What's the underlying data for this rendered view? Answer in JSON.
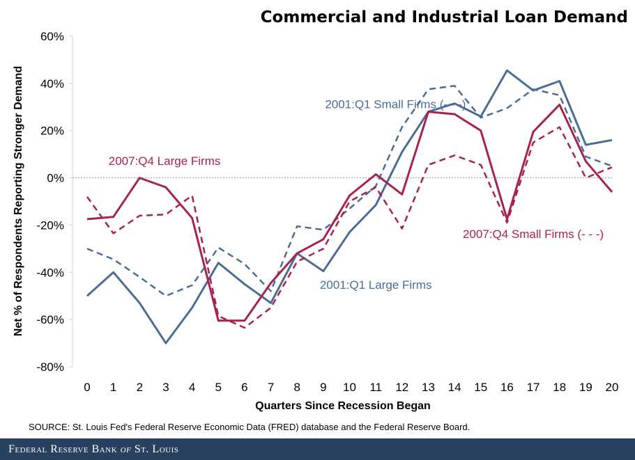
{
  "footer": {
    "org_part1": "Federal Reserve Bank",
    "org_of": "of",
    "org_part2": "St. Louis"
  },
  "colors": {
    "blue": "#4a6d97",
    "red": "#a8234b",
    "zero_line": "#999999",
    "footer_bg": "#27415f"
  },
  "chart_data": {
    "type": "line",
    "title": "Commercial and Industrial Loan Demand",
    "xlabel": "Quarters Since Recession Began",
    "ylabel": "Net % of Respondents Reporting Stronger Demand",
    "source": "SOURCE: St. Louis Fed's Federal Reserve Economic Data (FRED) database and the Federal Reserve Board.",
    "x": [
      0,
      1,
      2,
      3,
      4,
      5,
      6,
      7,
      8,
      9,
      10,
      11,
      12,
      13,
      14,
      15,
      16,
      17,
      18,
      19,
      20
    ],
    "xlim": [
      0,
      20
    ],
    "ylim": [
      -80,
      60
    ],
    "y_ticks": [
      {
        "value": 60,
        "label": "60%"
      },
      {
        "value": 40,
        "label": "40%"
      },
      {
        "value": 20,
        "label": "20%"
      },
      {
        "value": 0,
        "label": "0%"
      },
      {
        "value": -20,
        "label": "-20%"
      },
      {
        "value": -40,
        "label": "-40%"
      },
      {
        "value": -60,
        "label": "-60%"
      },
      {
        "value": -80,
        "label": "-80%"
      }
    ],
    "x_tick_labels": [
      "0",
      "1",
      "2",
      "3",
      "4",
      "5",
      "6",
      "7",
      "8",
      "9",
      "10",
      "11",
      "12",
      "13",
      "14",
      "15",
      "16",
      "17",
      "18",
      "19",
      "20"
    ],
    "grid": false,
    "zero_line": true,
    "series": [
      {
        "name": "2001:Q1 Large Firms",
        "color": "#4a6d97",
        "dash": false,
        "values": [
          -50,
          -40,
          -53,
          -70,
          -55,
          -36,
          -45,
          -53,
          -32,
          -39.5,
          -23,
          -11.5,
          11,
          28,
          31.5,
          26,
          45.5,
          37,
          41,
          14,
          16
        ]
      },
      {
        "name": "2001:Q1 Small Firms (- - -)",
        "color": "#4a6d97",
        "dash": true,
        "values": [
          -30,
          -34.5,
          -42,
          -50,
          -45.5,
          -29.5,
          -36.5,
          -48,
          -20.5,
          -22,
          -13,
          -3.5,
          21.5,
          37.5,
          39,
          25.5,
          29.5,
          37.5,
          35,
          9,
          5
        ]
      },
      {
        "name": "2007:Q4 Large Firms",
        "color": "#a8234b",
        "dash": false,
        "values": [
          -17.5,
          -16.5,
          0,
          -4,
          -17,
          -60.5,
          -60.5,
          -44.5,
          -32,
          -26,
          -7.5,
          1.5,
          -7,
          28,
          27,
          20,
          -17.5,
          19.5,
          31,
          7,
          -6
        ]
      },
      {
        "name": "2007:Q4 Small Firms (- - -)",
        "color": "#a8234b",
        "dash": true,
        "values": [
          -8,
          -23.5,
          -16,
          -15.5,
          -7.5,
          -58.5,
          -63.5,
          -55,
          -35.5,
          -30,
          -10,
          -4,
          -21.5,
          5.5,
          9.5,
          5.5,
          -19,
          15,
          21.5,
          0,
          4.5
        ]
      }
    ],
    "annotations": [
      {
        "text": "2001:Q1 Small Firms (- - -)",
        "color": "#4a6d97",
        "x": 11.75,
        "y": 29.5
      },
      {
        "text": "2007:Q4 Large Firms",
        "color": "#a8234b",
        "x": 2.95,
        "y": 5.5
      },
      {
        "text": "2007:Q4 Small Firms (- - -)",
        "color": "#a8234b",
        "x": 17,
        "y": -25.5
      },
      {
        "text": "2001:Q1 Large Firms",
        "color": "#4a6d97",
        "x": 11,
        "y": -47
      }
    ]
  }
}
